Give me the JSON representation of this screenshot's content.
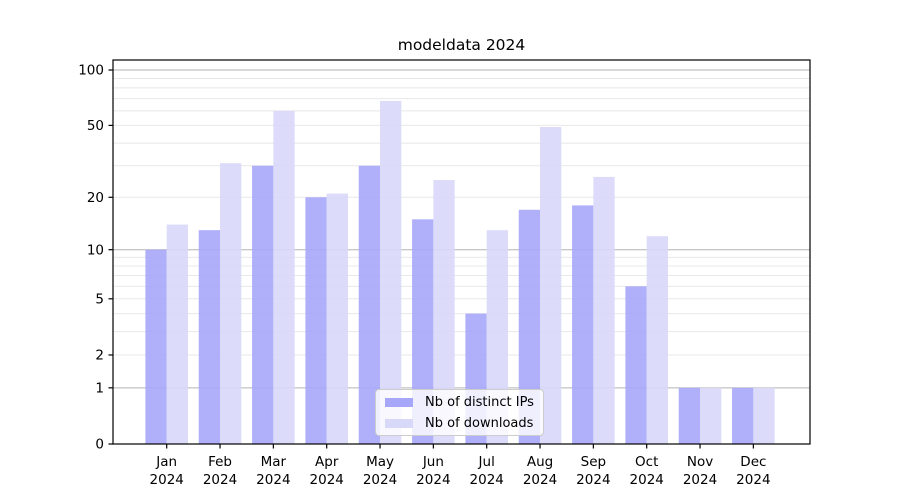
{
  "chart_data": {
    "type": "bar",
    "title": "modeldata 2024",
    "scale": "log1p",
    "categories": [
      "Jan",
      "Feb",
      "Mar",
      "Apr",
      "May",
      "Jun",
      "Jul",
      "Aug",
      "Sep",
      "Oct",
      "Nov",
      "Dec"
    ],
    "year": "2024",
    "series": [
      {
        "name": "Nb of distinct IPs",
        "color": "#a7a7f9",
        "values": [
          10,
          13,
          30,
          20,
          30,
          15,
          4,
          17,
          18,
          6,
          1,
          1
        ]
      },
      {
        "name": "Nb of downloads",
        "color": "#d8d8f9",
        "values": [
          14,
          31,
          60,
          21,
          68,
          25,
          13,
          49,
          26,
          12,
          1,
          1
        ]
      }
    ],
    "xlabel": "",
    "ylabel": "",
    "ylim": [
      0,
      113.3
    ],
    "y_ticks": [
      0,
      1,
      2,
      5,
      10,
      20,
      50,
      100
    ],
    "y_major_gridlines": [
      1,
      10,
      100
    ],
    "y_minor_gridlines": [
      2,
      3,
      4,
      5,
      6,
      7,
      8,
      9,
      20,
      30,
      40,
      50,
      60,
      70,
      80,
      90
    ],
    "grid": "horizontal",
    "legend_position": "bottom-center",
    "colors": {
      "background": "#ffffff",
      "spine": "#000000",
      "tick_label": "#000000",
      "grid_major": "#b3b3b3",
      "grid_minor": "#e8e8e8"
    }
  }
}
